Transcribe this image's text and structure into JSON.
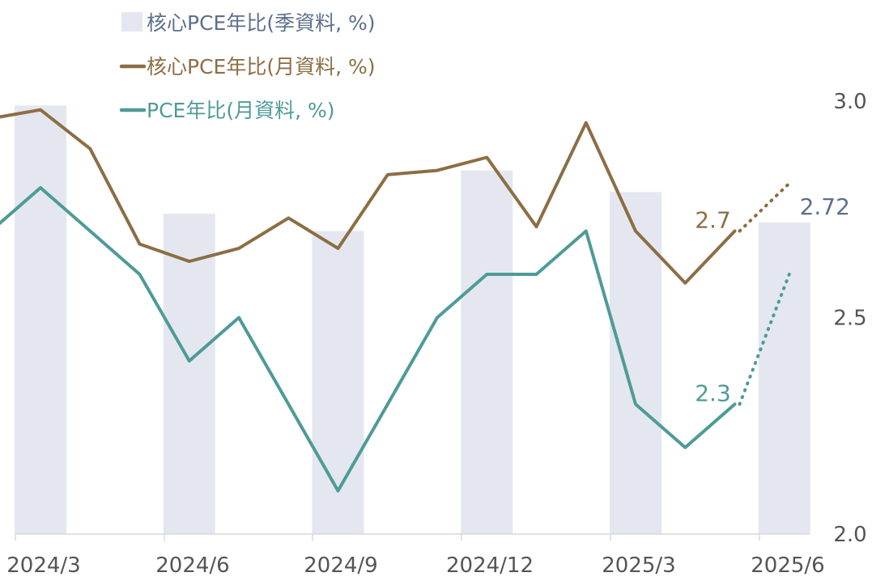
{
  "chart_data": {
    "type": "bar",
    "x_labels": [
      "2024/3",
      "2024/6",
      "2024/9",
      "2024/12",
      "2025/3",
      "2025/6"
    ],
    "y_ticks": [
      "2.0",
      "2.5",
      "3.0"
    ],
    "ylim": [
      2.0,
      3.0
    ],
    "y_axis_position": "right",
    "grid": false,
    "legend_position": "top-left",
    "series": [
      {
        "name": "核心PCE年比(季資料, %)",
        "type": "bar",
        "color": "#e4e7ef",
        "x": [
          "2024/3",
          "2024/6",
          "2024/9",
          "2024/12",
          "2025/3",
          "2025/6"
        ],
        "values": [
          2.99,
          2.74,
          2.7,
          2.84,
          2.79,
          2.72
        ]
      },
      {
        "name": "核心PCE年比(月資料, %)",
        "type": "line",
        "color": "#8c6e44",
        "x": [
          "2024/2",
          "2024/3",
          "2024/4",
          "2024/5",
          "2024/6",
          "2024/7",
          "2024/8",
          "2024/9",
          "2024/10",
          "2024/11",
          "2024/12",
          "2025/1",
          "2025/2",
          "2025/3",
          "2025/4",
          "2025/5"
        ],
        "values": [
          2.96,
          2.98,
          2.89,
          2.67,
          2.63,
          2.66,
          2.73,
          2.66,
          2.83,
          2.84,
          2.87,
          2.71,
          2.95,
          2.7,
          2.58,
          2.7
        ],
        "projection": {
          "x": [
            "2025/5",
            "2025/6"
          ],
          "values": [
            2.7,
            2.81
          ]
        }
      },
      {
        "name": "PCE年比(月資料, %)",
        "type": "line",
        "color": "#4e9b97",
        "x": [
          "2024/2",
          "2024/3",
          "2024/4",
          "2024/5",
          "2024/6",
          "2024/7",
          "2024/8",
          "2024/9",
          "2024/10",
          "2024/11",
          "2024/12",
          "2025/1",
          "2025/2",
          "2025/3",
          "2025/4",
          "2025/5"
        ],
        "values": [
          2.7,
          2.8,
          2.7,
          2.6,
          2.4,
          2.5,
          2.3,
          2.1,
          2.3,
          2.5,
          2.6,
          2.6,
          2.7,
          2.3,
          2.2,
          2.3
        ],
        "projection": {
          "x": [
            "2025/5",
            "2025/6"
          ],
          "values": [
            2.3,
            2.6
          ]
        }
      }
    ],
    "annotations": [
      {
        "text": "2.7",
        "series": "核心PCE年比(月資料, %)",
        "x": "2025/5",
        "color": "#8c6e44"
      },
      {
        "text": "2.3",
        "series": "PCE年比(月資料, %)",
        "x": "2025/5",
        "color": "#4e9b97"
      },
      {
        "text": "2.72",
        "series": "核心PCE年比(季資料, %)",
        "x": "2025/6",
        "color": "#5d6f8f"
      }
    ],
    "legend_text_colors": [
      "#5d6f8f",
      "#8c6e44",
      "#4e9b97"
    ]
  }
}
